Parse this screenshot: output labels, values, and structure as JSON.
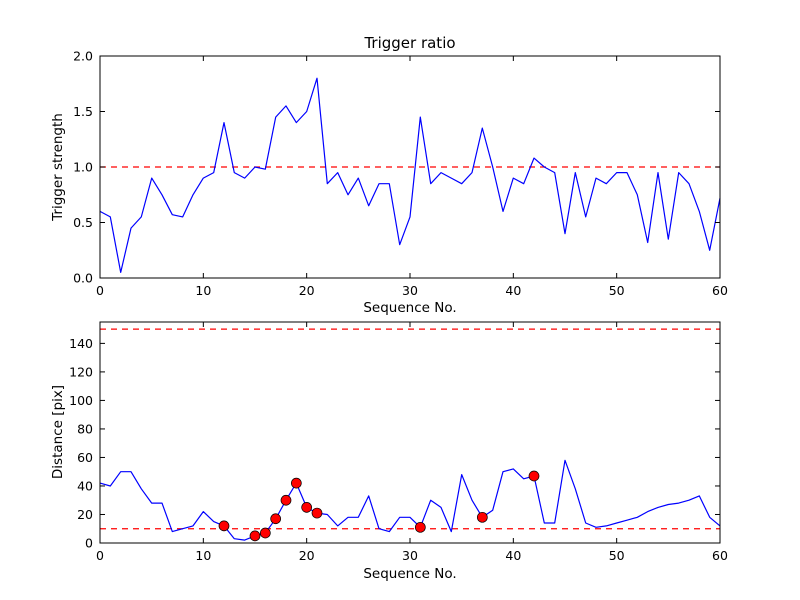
{
  "figure": {
    "background": "#ffffff",
    "axis_color": "#000000",
    "line_color": "#0000ff",
    "threshold_color": "#ff0000",
    "marker_color": "#ff0000",
    "marker_edge_color": "#000000"
  },
  "chart_data": [
    {
      "type": "line",
      "title": "Trigger ratio",
      "xlabel": "Sequence No.",
      "ylabel": "Trigger strength",
      "xlim": [
        0,
        60
      ],
      "ylim": [
        0.0,
        2.0
      ],
      "xticks": [
        "0",
        "10",
        "20",
        "30",
        "40",
        "50",
        "60"
      ],
      "yticks": [
        "0.0",
        "0.5",
        "1.0",
        "1.5",
        "2.0"
      ],
      "grid": false,
      "legend": "none",
      "threshold_lines": [
        1.0
      ],
      "x": [
        0,
        1,
        2,
        3,
        4,
        5,
        6,
        7,
        8,
        9,
        10,
        11,
        12,
        13,
        14,
        15,
        16,
        17,
        18,
        19,
        20,
        21,
        22,
        23,
        24,
        25,
        26,
        27,
        28,
        29,
        30,
        31,
        32,
        33,
        34,
        35,
        36,
        37,
        38,
        39,
        40,
        41,
        42,
        43,
        44,
        45,
        46,
        47,
        48,
        49,
        50,
        51,
        52,
        53,
        54,
        55,
        56,
        57,
        58,
        59,
        60
      ],
      "y": [
        0.6,
        0.55,
        0.05,
        0.45,
        0.55,
        0.9,
        0.75,
        0.57,
        0.55,
        0.75,
        0.9,
        0.95,
        1.4,
        0.95,
        0.9,
        1.0,
        0.98,
        1.45,
        1.55,
        1.4,
        1.5,
        1.8,
        0.85,
        0.95,
        0.75,
        0.9,
        0.65,
        0.85,
        0.85,
        0.3,
        0.55,
        1.45,
        0.85,
        0.95,
        0.9,
        0.85,
        0.95,
        1.35,
        1.0,
        0.6,
        0.9,
        0.85,
        1.08,
        1.0,
        0.95,
        0.4,
        0.95,
        0.55,
        0.9,
        0.85,
        0.95,
        0.95,
        0.75,
        0.32,
        0.95,
        0.35,
        0.95,
        0.85,
        0.6,
        0.25,
        0.72
      ],
      "markers": []
    },
    {
      "type": "line",
      "title": "",
      "xlabel": "Sequence No.",
      "ylabel": "Distance [pix]",
      "xlim": [
        0,
        60
      ],
      "ylim": [
        0,
        155
      ],
      "xticks": [
        "0",
        "10",
        "20",
        "30",
        "40",
        "50",
        "60"
      ],
      "yticks": [
        "0",
        "20",
        "40",
        "60",
        "80",
        "100",
        "120",
        "140"
      ],
      "grid": false,
      "legend": "none",
      "threshold_lines": [
        150,
        10
      ],
      "x": [
        0,
        1,
        2,
        3,
        4,
        5,
        6,
        7,
        8,
        9,
        10,
        11,
        12,
        13,
        14,
        15,
        16,
        17,
        18,
        19,
        20,
        21,
        22,
        23,
        24,
        25,
        26,
        27,
        28,
        29,
        30,
        31,
        32,
        33,
        34,
        35,
        36,
        37,
        38,
        39,
        40,
        41,
        42,
        43,
        44,
        45,
        46,
        47,
        48,
        49,
        50,
        51,
        52,
        53,
        54,
        55,
        56,
        57,
        58,
        59,
        60
      ],
      "y": [
        42,
        40,
        50,
        50,
        38,
        28,
        28,
        8,
        10,
        12,
        22,
        15,
        12,
        3,
        2,
        5,
        7,
        17,
        30,
        42,
        25,
        21,
        20,
        12,
        18,
        18,
        33,
        10,
        8,
        18,
        18,
        11,
        30,
        25,
        8,
        48,
        30,
        18,
        23,
        50,
        52,
        45,
        47,
        14,
        14,
        58,
        38,
        14,
        11,
        12,
        14,
        16,
        18,
        22,
        25,
        27,
        28,
        30,
        33,
        18,
        12
      ],
      "markers": [
        {
          "x": 12,
          "y": 12
        },
        {
          "x": 15,
          "y": 5
        },
        {
          "x": 16,
          "y": 7
        },
        {
          "x": 17,
          "y": 17
        },
        {
          "x": 18,
          "y": 30
        },
        {
          "x": 19,
          "y": 42
        },
        {
          "x": 20,
          "y": 25
        },
        {
          "x": 21,
          "y": 21
        },
        {
          "x": 31,
          "y": 11
        },
        {
          "x": 37,
          "y": 18
        },
        {
          "x": 42,
          "y": 47
        }
      ]
    }
  ]
}
